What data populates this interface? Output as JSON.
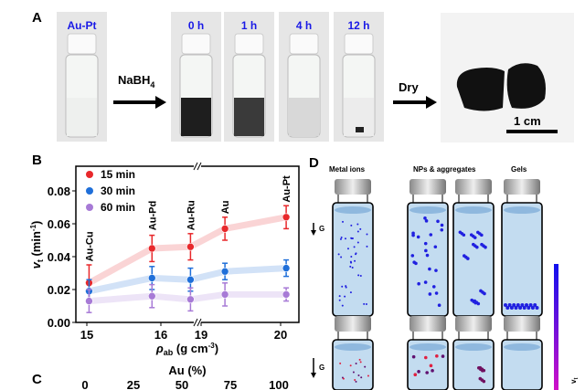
{
  "panel_a": {
    "label": "A",
    "vial_labels": [
      "Au-Pt",
      "0 h",
      "1 h",
      "4 h",
      "12 h"
    ],
    "reagent": "NaBH",
    "reagent_sub": "4",
    "dry": "Dry",
    "scale": "1 cm",
    "label_color": "#1a1ae6"
  },
  "panel_b": {
    "label": "B"
  },
  "panel_c": {
    "label": "C",
    "axis_title": "Au (%)",
    "ticks": [
      "0",
      "25",
      "50",
      "75",
      "100"
    ]
  },
  "panel_d": {
    "label": "D",
    "headers": [
      "Metal ions",
      "NPs & aggregates",
      "Gels"
    ],
    "gravity": "G",
    "colorbar_label": "v",
    "colorbar_sub": "t"
  },
  "chart_data": {
    "type": "scatter",
    "xlabel": "ρ",
    "xlabel_sub": "ab",
    "xlabel_unit": " (g cm",
    "xlabel_exp": "-3",
    "xlabel_close": ")",
    "ylabel": "v",
    "ylabel_sub": "t",
    "ylabel_unit": " (min",
    "ylabel_exp": "-1",
    "ylabel_close": ")",
    "ylim": [
      0,
      0.095
    ],
    "xaxis_break": [
      16.5,
      19
    ],
    "xticks": [
      15,
      16,
      19,
      20
    ],
    "yticks": [
      "0.00",
      "0.02",
      "0.04",
      "0.06",
      "0.08"
    ],
    "categories": [
      "Au-Cu",
      "Au-Pd",
      "Au-Ru",
      "Au",
      "Au-Pt"
    ],
    "x": [
      15.03,
      15.88,
      16.4,
      19.3,
      20.07
    ],
    "legend_position": "top-left",
    "series": [
      {
        "name": "15 min",
        "color": "#e8282b",
        "values": [
          0.024,
          0.045,
          0.046,
          0.057,
          0.064
        ],
        "errors": [
          0.011,
          0.008,
          0.008,
          0.007,
          0.007
        ]
      },
      {
        "name": "30 min",
        "color": "#1f6fd9",
        "values": [
          0.019,
          0.027,
          0.026,
          0.031,
          0.033
        ],
        "errors": [
          0.007,
          0.007,
          0.007,
          0.005,
          0.005
        ]
      },
      {
        "name": "60 min",
        "color": "#a77ad6",
        "values": [
          0.013,
          0.016,
          0.014,
          0.017,
          0.017
        ],
        "errors": [
          0.007,
          0.007,
          0.007,
          0.007,
          0.004
        ]
      }
    ]
  }
}
